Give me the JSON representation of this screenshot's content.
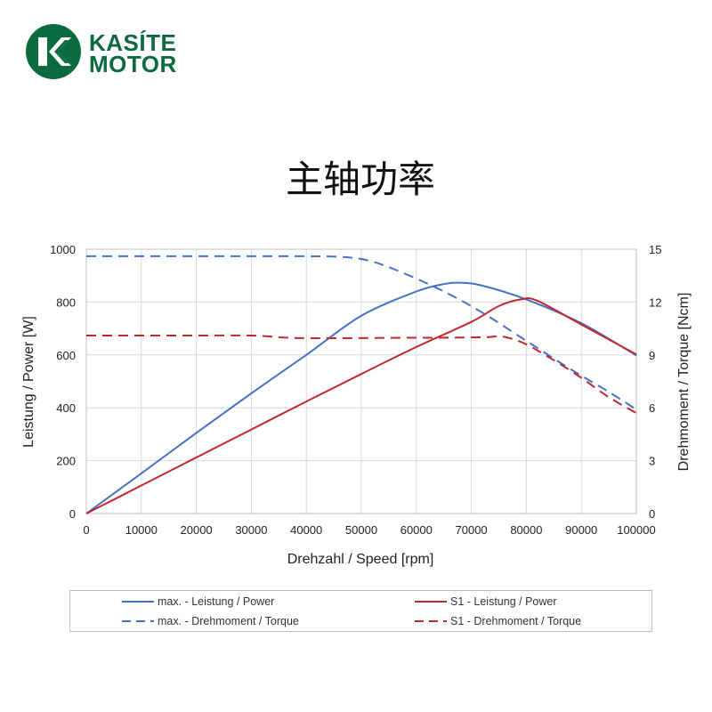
{
  "brand": {
    "line1": "KASÍTE",
    "line2": "MOTOR",
    "color": "#0c6b3e"
  },
  "page_title": "主轴功率",
  "chart_data": {
    "type": "line",
    "x": {
      "label": "Drehzahl / Speed [rpm]",
      "range": [
        0,
        100000
      ],
      "ticks": [
        0,
        10000,
        20000,
        30000,
        40000,
        50000,
        60000,
        70000,
        80000,
        90000,
        100000
      ],
      "tick_labels": [
        "0",
        "10000",
        "20000",
        "30000",
        "40000",
        "50000",
        "60000",
        "70000",
        "80000",
        "90000",
        "100000"
      ]
    },
    "y_left": {
      "label": "Leistung / Power [W]",
      "range": [
        0,
        1000
      ],
      "ticks": [
        0,
        200,
        400,
        600,
        800,
        1000
      ],
      "tick_labels": [
        "0",
        "200",
        "400",
        "600",
        "800",
        "1000"
      ]
    },
    "y_right": {
      "label": "Drehmoment / Torque [Ncm]",
      "range": [
        0,
        15
      ],
      "ticks": [
        0,
        3,
        6,
        9,
        12,
        15
      ],
      "tick_labels": [
        "0",
        "3",
        "6",
        "9",
        "12",
        "15"
      ]
    },
    "grid": true,
    "legend_position": "bottom",
    "series": [
      {
        "name": "max. - Leistung / Power",
        "axis": "left",
        "color": "#4472c4",
        "dash": "solid",
        "points": [
          [
            0,
            0
          ],
          [
            10000,
            152
          ],
          [
            20000,
            305
          ],
          [
            30000,
            455
          ],
          [
            40000,
            600
          ],
          [
            50000,
            748
          ],
          [
            60000,
            840
          ],
          [
            65000,
            868
          ],
          [
            68000,
            873
          ],
          [
            72000,
            862
          ],
          [
            80000,
            810
          ],
          [
            90000,
            720
          ],
          [
            100000,
            598
          ]
        ]
      },
      {
        "name": "S1 - Leistung / Power",
        "axis": "left",
        "color": "#c0282e",
        "dash": "solid",
        "points": [
          [
            0,
            0
          ],
          [
            10000,
            106
          ],
          [
            20000,
            212
          ],
          [
            30000,
            318
          ],
          [
            40000,
            424
          ],
          [
            50000,
            528
          ],
          [
            60000,
            630
          ],
          [
            70000,
            725
          ],
          [
            75000,
            785
          ],
          [
            79000,
            810
          ],
          [
            82000,
            805
          ],
          [
            90000,
            715
          ],
          [
            100000,
            602
          ]
        ]
      },
      {
        "name": "max. - Drehmoment / Torque",
        "axis": "right",
        "color": "#4472c4",
        "dash": "dashed",
        "points": [
          [
            0,
            14.6
          ],
          [
            10000,
            14.6
          ],
          [
            20000,
            14.6
          ],
          [
            30000,
            14.6
          ],
          [
            40000,
            14.6
          ],
          [
            47000,
            14.55
          ],
          [
            52000,
            14.3
          ],
          [
            58000,
            13.6
          ],
          [
            65000,
            12.6
          ],
          [
            72000,
            11.4
          ],
          [
            80000,
            9.8
          ],
          [
            88000,
            8.2
          ],
          [
            95000,
            6.9
          ],
          [
            100000,
            5.9
          ]
        ]
      },
      {
        "name": "S1 - Drehmoment / Torque",
        "axis": "right",
        "color": "#c0282e",
        "dash": "dashed",
        "points": [
          [
            0,
            10.1
          ],
          [
            10000,
            10.1
          ],
          [
            20000,
            10.1
          ],
          [
            30000,
            10.1
          ],
          [
            37000,
            9.97
          ],
          [
            45000,
            9.95
          ],
          [
            55000,
            9.97
          ],
          [
            65000,
            9.98
          ],
          [
            72000,
            10.0
          ],
          [
            75000,
            10.05
          ],
          [
            77000,
            9.95
          ],
          [
            80000,
            9.6
          ],
          [
            85000,
            8.7
          ],
          [
            90000,
            7.7
          ],
          [
            95000,
            6.6
          ],
          [
            100000,
            5.7
          ]
        ]
      }
    ]
  }
}
